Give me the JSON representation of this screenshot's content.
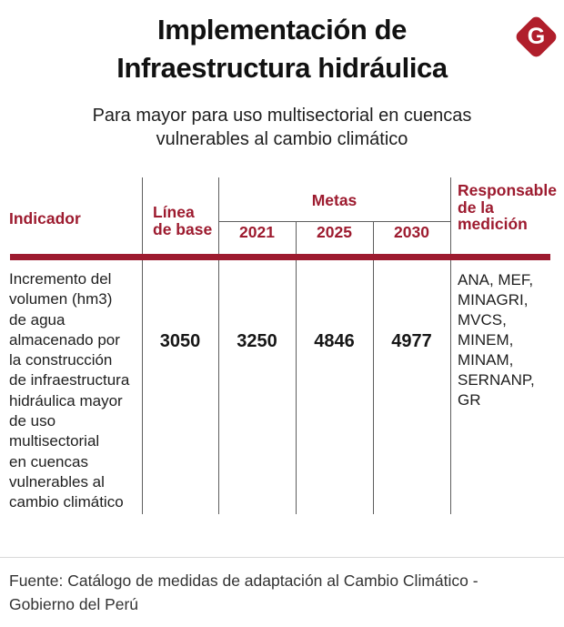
{
  "colors": {
    "accent": "#9D1B2F",
    "logo": "#B01E2B",
    "grid_line": "#5E5E5E",
    "separator": "#D9D9D9",
    "title_text": "#111111",
    "body_text": "#1E1E1E"
  },
  "brand": {
    "logo_letter": "G"
  },
  "header": {
    "title": "Implementación de\nInfraestructura hidráulica",
    "subtitle": "Para mayor para uso multisectorial en cuencas\nvulnerables al cambio climático"
  },
  "table": {
    "indicator_header": "Indicador",
    "baseline_header": "Línea\nde base",
    "metas_header": "Metas",
    "years": [
      "2021",
      "2025",
      "2030"
    ],
    "responsible_header": "Responsable\nde la\nmedición",
    "row": {
      "indicator": "Incremento del\nvolumen (hm3)\nde agua\nalmacenado por\nla construcción\nde infraestructura\nhidráulica mayor\nde uso\nmultisectorial\nen cuencas\nvulnerables al\ncambio climático",
      "baseline": "3050",
      "meta_2021": "3250",
      "meta_2025": "4846",
      "meta_2030": "4977",
      "responsible": "ANA, MEF,\nMINAGRI,\nMVCS,\nMINEM,\nMINAM,\nSERNANP,\nGR"
    }
  },
  "footer": {
    "source": "Fuente: Catálogo de medidas de adaptación al Cambio Climático -\nGobierno del Perú"
  },
  "chart_data": {
    "type": "table",
    "title": "Implementación de Infraestructura hidráulica",
    "subtitle": "Para mayor para uso multisectorial en cuencas vulnerables al cambio climático",
    "columns": [
      "Indicador",
      "Línea de base",
      "Metas 2021",
      "Metas 2025",
      "Metas 2030",
      "Responsable de la medición"
    ],
    "rows": [
      {
        "indicador": "Incremento del volumen (hm3) de agua almacenado por la construcción de infraestructura hidráulica mayor de uso multisectorial en cuencas vulnerables al cambio climático",
        "linea_de_base": 3050,
        "meta_2021": 3250,
        "meta_2025": 4846,
        "meta_2030": 4977,
        "responsable": "ANA, MEF, MINAGRI, MVCS, MINEM, MINAM, SERNANP, GR"
      }
    ],
    "source": "Fuente: Catálogo de medidas de adaptación al Cambio Climático - Gobierno del Perú"
  }
}
